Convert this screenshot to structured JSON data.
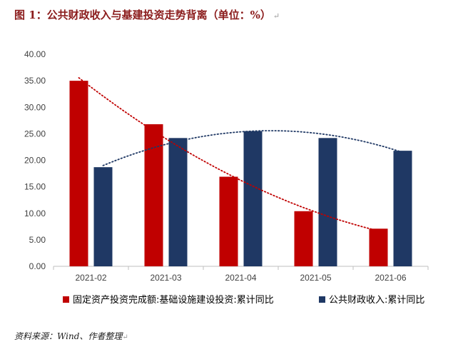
{
  "title": "图 1：公共财政收入与基建投资走势背离（单位：%）",
  "paragraph_mark": "↵",
  "source": "资料来源：Wind、作者整理",
  "chart_data": {
    "type": "bar",
    "categories": [
      "2021-02",
      "2021-03",
      "2021-04",
      "2021-05",
      "2021-06"
    ],
    "series": [
      {
        "name": "固定资产投资完成额:基础设施建设投资:累计同比",
        "values": [
          35.0,
          26.8,
          16.9,
          10.4,
          7.1
        ],
        "color": "#c00000",
        "trendline": true,
        "trendline_style": "dotted"
      },
      {
        "name": "公共财政收入:累计同比",
        "values": [
          18.7,
          24.2,
          25.5,
          24.2,
          21.8
        ],
        "color": "#1f3864",
        "trendline": true,
        "trendline_style": "dotted"
      }
    ],
    "yticks": [
      "0.00",
      "5.00",
      "10.00",
      "15.00",
      "20.00",
      "25.00",
      "30.00",
      "35.00",
      "40.00"
    ],
    "ylim": [
      0,
      40
    ],
    "grid": false,
    "legend_position": "bottom"
  }
}
